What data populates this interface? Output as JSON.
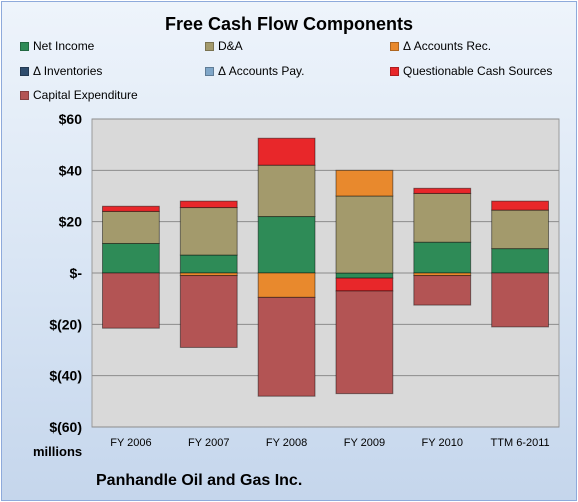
{
  "chart_data": {
    "type": "bar",
    "stacked": true,
    "title": "Free Cash Flow Components",
    "categories": [
      "FY 2006",
      "FY 2007",
      "FY 2008",
      "FY 2009",
      "FY 2010",
      "TTM 6-2011"
    ],
    "ylim": [
      -60,
      60
    ],
    "yticks": [
      60,
      40,
      20,
      0,
      -20,
      -40,
      -60
    ],
    "ytick_labels": [
      "$60",
      "$40",
      "$20",
      "$-",
      "$(20)",
      "$(40)",
      "$(60)"
    ],
    "grid": true,
    "legend_position": "top",
    "y_unit_label": "millions",
    "series": [
      {
        "name": "Net Income",
        "color": "#2e8b57",
        "values": [
          11.5,
          7,
          22,
          -2,
          12,
          9.5
        ]
      },
      {
        "name": "D&A",
        "color": "#a39a6c",
        "values": [
          12.5,
          18.5,
          20,
          30,
          19,
          15
        ]
      },
      {
        "name": "Δ Accounts Rec.",
        "color": "#e8892d",
        "values": [
          0,
          -1,
          -9.5,
          10,
          -1,
          0
        ]
      },
      {
        "name": "Δ Inventories",
        "color": "#2f4d6e",
        "values": [
          0,
          0,
          0,
          0,
          0,
          0
        ]
      },
      {
        "name": "Δ Accounts Pay.",
        "color": "#7fa6c8",
        "values": [
          0,
          0,
          0,
          0,
          0,
          0
        ]
      },
      {
        "name": "Questionable Cash Sources",
        "color": "#e8272a",
        "values": [
          2,
          2.5,
          10.5,
          -5,
          2,
          3.5
        ]
      },
      {
        "name": "Capital Expenditure",
        "color": "#b35454",
        "values": [
          -21.5,
          -28,
          -38.5,
          -40,
          -11.5,
          -21
        ]
      }
    ]
  },
  "footer": {
    "y_unit": "millions",
    "company": "Panhandle Oil and Gas Inc."
  }
}
